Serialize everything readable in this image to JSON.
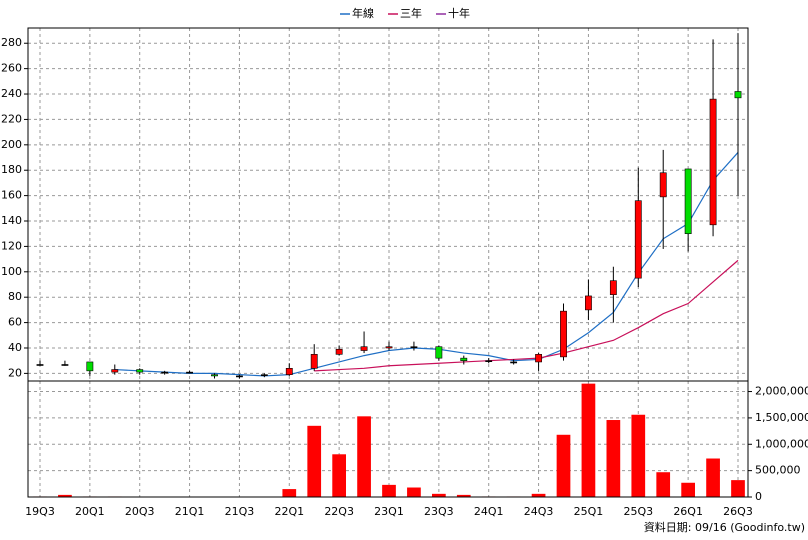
{
  "chart_data": {
    "type": "candlestick",
    "categories": [
      "19Q3",
      null,
      "20Q1",
      null,
      "20Q3",
      null,
      "21Q1",
      null,
      "21Q3",
      null,
      "22Q1",
      null,
      "22Q3",
      null,
      "23Q1",
      null,
      "23Q3",
      null,
      "24Q1",
      null,
      "24Q3",
      null,
      "25Q1",
      null,
      "25Q3",
      null,
      "26Q1",
      null,
      "26Q3"
    ],
    "open": [
      27,
      27,
      29,
      21,
      23,
      21,
      21,
      19,
      18,
      19,
      19,
      24,
      35,
      38,
      40,
      41,
      41,
      32,
      30,
      29,
      29,
      33,
      70,
      82,
      95,
      159,
      181,
      137,
      242
    ],
    "high": [
      30,
      30,
      29,
      27,
      24,
      22,
      22,
      20,
      19,
      20,
      28,
      43,
      42,
      53,
      45,
      45,
      42,
      34,
      32,
      31,
      36,
      75,
      94,
      104,
      182,
      196,
      181,
      283,
      288
    ],
    "low": [
      26,
      26,
      18,
      19,
      19,
      19,
      20,
      16,
      16,
      17,
      18,
      22,
      34,
      36,
      38,
      38,
      30,
      27,
      28,
      27,
      22,
      30,
      62,
      60,
      88,
      118,
      116,
      128,
      160
    ],
    "close": [
      27,
      27,
      22,
      23,
      21,
      21,
      21,
      18,
      18,
      19,
      24,
      35,
      39,
      41,
      41,
      41,
      32,
      30,
      30,
      29,
      35,
      69,
      81,
      93,
      156,
      178,
      130,
      236,
      237
    ],
    "up_color": "#ff0000",
    "down_color": "#00dd00",
    "series": [
      {
        "name": "年線",
        "color": "#1f6fc5",
        "values": [
          null,
          null,
          null,
          23,
          22,
          21,
          20,
          20,
          19,
          18,
          19,
          24,
          29,
          34,
          38,
          40,
          39,
          36,
          34,
          30,
          31,
          39,
          52,
          68,
          99,
          126,
          138,
          172,
          194
        ]
      },
      {
        "name": "三年",
        "color": "#c8105a",
        "values": [
          null,
          null,
          null,
          null,
          null,
          null,
          null,
          null,
          null,
          null,
          null,
          22,
          23,
          24,
          26,
          27,
          28,
          29,
          30,
          31,
          32,
          36,
          41,
          46,
          56,
          67,
          75,
          92,
          109
        ]
      },
      {
        "name": "十年",
        "color": "#9030a0",
        "values": [
          null,
          null,
          null,
          null,
          null,
          null,
          null,
          null,
          null,
          null,
          null,
          null,
          null,
          null,
          null,
          null,
          null,
          null,
          null,
          null,
          null,
          null,
          null,
          null,
          null,
          null,
          null,
          null,
          null
        ]
      }
    ],
    "ylim": [
      14,
      292
    ],
    "yticks": [
      20,
      40,
      60,
      80,
      100,
      120,
      140,
      160,
      180,
      200,
      220,
      240,
      260,
      280
    ],
    "volume": {
      "color": "#ff0000",
      "values": [
        10000,
        40000,
        10000,
        10000,
        5000,
        5000,
        5000,
        5000,
        5000,
        5000,
        150000,
        1350000,
        810000,
        1530000,
        230000,
        180000,
        60000,
        40000,
        10000,
        10000,
        60000,
        1180000,
        2150000,
        1460000,
        1560000,
        470000,
        270000,
        730000,
        320000
      ],
      "ylim": [
        0,
        2200000
      ],
      "yticks": [
        0,
        {
          "value": 500000,
          "label": "500,000"
        },
        {
          "value": 1000000,
          "label": "1,000,000"
        },
        {
          "value": 1500000,
          "label": "1,500,000"
        },
        {
          "value": 2000000,
          "label": "2,000,000"
        }
      ]
    },
    "grid": true,
    "annotation": "資料日期: 09/16 (Goodinfo.tw)"
  }
}
